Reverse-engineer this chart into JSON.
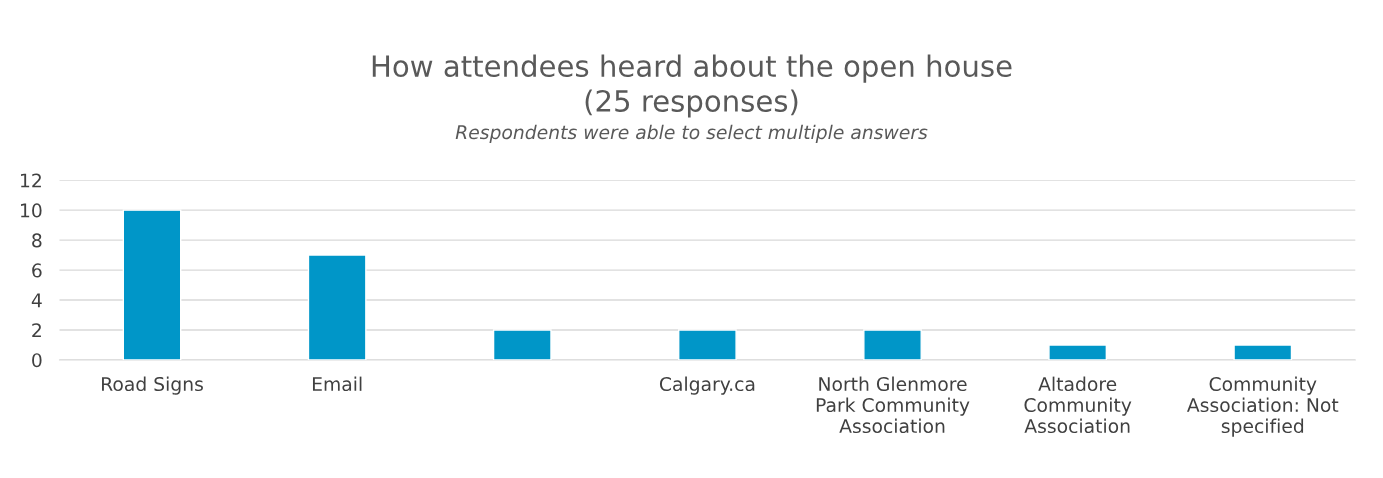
{
  "chart_data": {
    "type": "bar",
    "title": "How attendees heard about the open house\n(25 responses)",
    "subtitle": "Respondents were able to select multiple answers",
    "categories": [
      "Road Signs",
      "Email",
      null,
      "Calgary.ca",
      "North Glenmore\nPark Community\nAssociation",
      "Altadore\nCommunity\nAssociation",
      "Community\nAssociation: Not\nspecified"
    ],
    "values": [
      10,
      7,
      2,
      2,
      2,
      1,
      1
    ],
    "color": "#0096c8",
    "ylim": [
      0,
      12
    ],
    "yticks": [
      0,
      2,
      4,
      6,
      8,
      10,
      12
    ],
    "grid": "y"
  }
}
